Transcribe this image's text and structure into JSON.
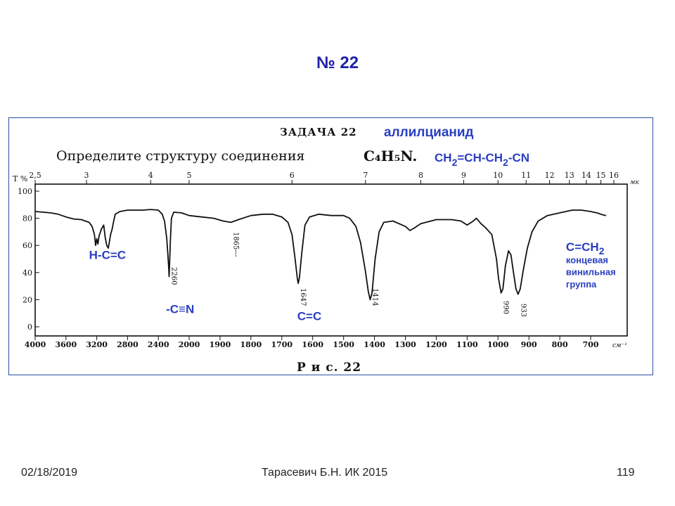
{
  "slide": {
    "title": "№ 22",
    "footer_date": "02/18/2019",
    "footer_center": "Тарасевич Б.Н.  ИК 2015",
    "footer_page": "119"
  },
  "scan": {
    "task_label": "ЗАДАЧА 22",
    "task_text": "Определите структуру соединения",
    "formula": "C₄H₅N.",
    "figure_caption": "Р и с. 22"
  },
  "answer": {
    "name": "аллилцианид",
    "formula_parts": [
      "CH",
      "2",
      "=CH-CH",
      "2",
      "-CN"
    ]
  },
  "chart_data": {
    "type": "line",
    "title": "",
    "ylabel": "T %",
    "xlabel": "см⁻¹",
    "xlim": [
      4000,
      600
    ],
    "ylim": [
      0,
      100
    ],
    "y_ticks": [
      "0",
      "20",
      "40",
      "60",
      "80",
      "100"
    ],
    "x_ticks": [
      "4000",
      "3600",
      "3200",
      "2800",
      "2400",
      "2000",
      "1900",
      "1800",
      "1700",
      "1600",
      "1500",
      "1400",
      "1300",
      "1200",
      "1100",
      "1000",
      "900",
      "800",
      "700"
    ],
    "x_tick_values": [
      4000,
      3600,
      3200,
      2800,
      2400,
      2000,
      1900,
      1800,
      1700,
      1600,
      1500,
      1400,
      1300,
      1200,
      1100,
      1000,
      900,
      800,
      700
    ],
    "top_unit": "мк",
    "top_ticks": [
      "2,5",
      "3",
      "4",
      "5",
      "6",
      "7",
      "8",
      "9",
      "10",
      "11",
      "12",
      "13",
      "14",
      "15",
      "16"
    ],
    "top_tick_wavenumbers": [
      4000,
      3333,
      2500,
      2000,
      1667,
      1429,
      1250,
      1111,
      1000,
      909,
      833,
      769,
      714,
      667,
      625
    ],
    "peak_labels": [
      {
        "text": "2260",
        "x": 2260
      },
      {
        "text": "1865---",
        "x": 1865
      },
      {
        "text": "1647",
        "x": 1647
      },
      {
        "text": "1414",
        "x": 1414
      },
      {
        "text": "990",
        "x": 990
      },
      {
        "text": "933",
        "x": 933
      }
    ],
    "annotations": [
      {
        "text": "H-C=C",
        "x": 3300,
        "y": 50
      },
      {
        "text": "-C≡N",
        "x": 2300,
        "y": 10
      },
      {
        "text": "C=C",
        "x": 1650,
        "y": 5
      },
      {
        "text": "C=CH2",
        "x": 780,
        "y": 56
      },
      {
        "text": "концевая",
        "x": 780,
        "y": 47
      },
      {
        "text": "винильная",
        "x": 780,
        "y": 38
      },
      {
        "text": "группа",
        "x": 780,
        "y": 29
      }
    ],
    "series": [
      {
        "points": [
          [
            4000,
            85
          ],
          [
            3900,
            84.5
          ],
          [
            3800,
            84
          ],
          [
            3700,
            83
          ],
          [
            3600,
            81
          ],
          [
            3500,
            79.5
          ],
          [
            3400,
            79
          ],
          [
            3300,
            77
          ],
          [
            3260,
            74
          ],
          [
            3230,
            68
          ],
          [
            3215,
            60
          ],
          [
            3200,
            65
          ],
          [
            3185,
            61
          ],
          [
            3170,
            67
          ],
          [
            3140,
            72
          ],
          [
            3110,
            75
          ],
          [
            3090,
            66
          ],
          [
            3070,
            60
          ],
          [
            3050,
            58
          ],
          [
            3035,
            63
          ],
          [
            3020,
            68
          ],
          [
            3000,
            72
          ],
          [
            2980,
            78
          ],
          [
            2960,
            83
          ],
          [
            2900,
            85
          ],
          [
            2800,
            86
          ],
          [
            2700,
            86
          ],
          [
            2600,
            86
          ],
          [
            2500,
            86.5
          ],
          [
            2400,
            86
          ],
          [
            2350,
            83
          ],
          [
            2320,
            78
          ],
          [
            2290,
            65
          ],
          [
            2275,
            52
          ],
          [
            2265,
            43
          ],
          [
            2260,
            37
          ],
          [
            2255,
            45
          ],
          [
            2245,
            62
          ],
          [
            2230,
            80
          ],
          [
            2200,
            84.5
          ],
          [
            2100,
            84
          ],
          [
            2000,
            82
          ],
          [
            1960,
            81
          ],
          [
            1920,
            80
          ],
          [
            1890,
            78
          ],
          [
            1865,
            77
          ],
          [
            1840,
            79
          ],
          [
            1800,
            82
          ],
          [
            1760,
            83
          ],
          [
            1730,
            83
          ],
          [
            1700,
            81
          ],
          [
            1680,
            77
          ],
          [
            1667,
            68
          ],
          [
            1657,
            50
          ],
          [
            1650,
            36
          ],
          [
            1647,
            32
          ],
          [
            1643,
            36
          ],
          [
            1635,
            55
          ],
          [
            1625,
            75
          ],
          [
            1610,
            81
          ],
          [
            1580,
            83
          ],
          [
            1540,
            82
          ],
          [
            1500,
            82
          ],
          [
            1480,
            80
          ],
          [
            1460,
            74
          ],
          [
            1445,
            62
          ],
          [
            1430,
            42
          ],
          [
            1420,
            26
          ],
          [
            1414,
            20
          ],
          [
            1408,
            25
          ],
          [
            1398,
            50
          ],
          [
            1385,
            70
          ],
          [
            1370,
            77
          ],
          [
            1340,
            78
          ],
          [
            1300,
            74
          ],
          [
            1285,
            71
          ],
          [
            1270,
            73
          ],
          [
            1250,
            76
          ],
          [
            1200,
            79
          ],
          [
            1150,
            79
          ],
          [
            1120,
            78
          ],
          [
            1100,
            75
          ],
          [
            1080,
            78
          ],
          [
            1070,
            80
          ],
          [
            1055,
            76
          ],
          [
            1040,
            73
          ],
          [
            1020,
            68
          ],
          [
            1005,
            50
          ],
          [
            998,
            35
          ],
          [
            990,
            25
          ],
          [
            984,
            28
          ],
          [
            976,
            45
          ],
          [
            966,
            56
          ],
          [
            958,
            53
          ],
          [
            950,
            40
          ],
          [
            942,
            28
          ],
          [
            935,
            24
          ],
          [
            928,
            28
          ],
          [
            918,
            42
          ],
          [
            905,
            58
          ],
          [
            890,
            70
          ],
          [
            870,
            78
          ],
          [
            840,
            82
          ],
          [
            800,
            84
          ],
          [
            760,
            86
          ],
          [
            730,
            86
          ],
          [
            700,
            85
          ],
          [
            680,
            84
          ],
          [
            660,
            82.5
          ],
          [
            650,
            82
          ]
        ]
      }
    ]
  }
}
